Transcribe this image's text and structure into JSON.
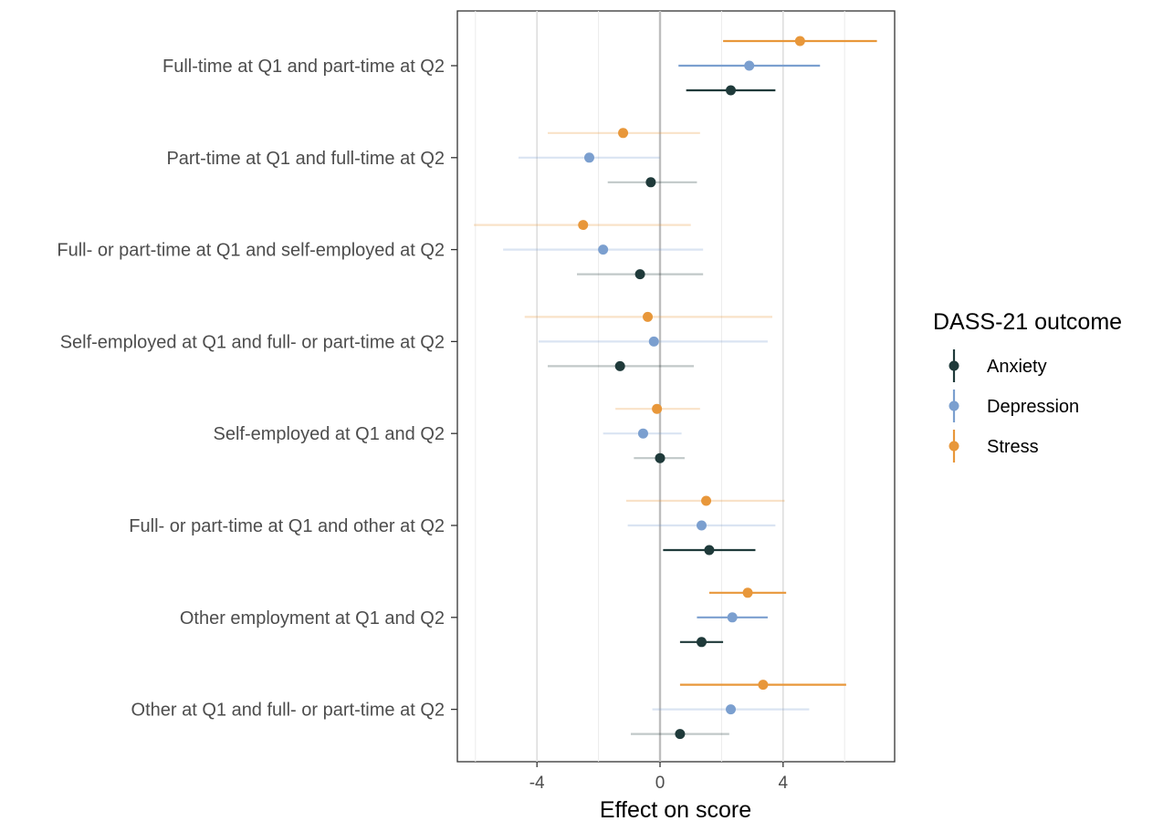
{
  "chart_data": {
    "type": "scatter",
    "subtype": "forest-plot-point-range",
    "title": "",
    "xlabel": "Effect on score",
    "ylabel": "",
    "xlim": [
      -6.7,
      7.6
    ],
    "xticks": [
      -4,
      0,
      4
    ],
    "xtick_labels": [
      "-4",
      "0",
      "4"
    ],
    "grid": true,
    "reference_line": 0,
    "legend_title": "DASS-21 outcome",
    "legend_position": "right",
    "categories": [
      "Full-time at Q1 and part-time at Q2",
      "Part-time at Q1 and full-time at Q2",
      "Full- or part-time at Q1 and self-employed at Q2",
      "Self-employed at Q1 and full- or part-time at Q2",
      "Self-employed at Q1 and Q2",
      "Full- or part-time at Q1 and other at Q2",
      "Other employment at Q1 and Q2",
      "Other at Q1 and full- or part-time at Q2"
    ],
    "series": [
      {
        "name": "Anxiety",
        "color": "#1f3a3a",
        "estimate": [
          2.3,
          -0.3,
          -0.65,
          -1.3,
          0.0,
          1.6,
          1.35,
          0.65
        ],
        "lower": [
          0.85,
          -1.7,
          -2.7,
          -3.65,
          -0.85,
          0.1,
          0.65,
          -0.95
        ],
        "upper": [
          3.75,
          1.2,
          1.4,
          1.1,
          0.8,
          3.1,
          2.05,
          2.25
        ],
        "significant": [
          true,
          false,
          false,
          false,
          false,
          true,
          true,
          false
        ]
      },
      {
        "name": "Depression",
        "color": "#7b9fcf",
        "estimate": [
          2.9,
          -2.3,
          -1.85,
          -0.2,
          -0.55,
          1.35,
          2.35,
          2.3
        ],
        "lower": [
          0.6,
          -4.6,
          -5.1,
          -3.95,
          -1.85,
          -1.05,
          1.2,
          -0.25
        ],
        "upper": [
          5.2,
          0.0,
          1.4,
          3.5,
          0.7,
          3.75,
          3.5,
          4.85
        ],
        "significant": [
          true,
          false,
          false,
          false,
          false,
          false,
          true,
          false
        ]
      },
      {
        "name": "Stress",
        "color": "#e8973a",
        "estimate": [
          4.55,
          -1.2,
          -2.5,
          -0.4,
          -0.1,
          1.5,
          2.85,
          3.35
        ],
        "lower": [
          2.05,
          -3.65,
          -6.05,
          -4.4,
          -1.45,
          -1.1,
          1.6,
          0.65
        ],
        "upper": [
          7.05,
          1.3,
          1.0,
          3.65,
          1.3,
          4.05,
          4.1,
          6.05
        ],
        "significant": [
          true,
          false,
          false,
          false,
          false,
          false,
          true,
          true
        ]
      }
    ]
  }
}
